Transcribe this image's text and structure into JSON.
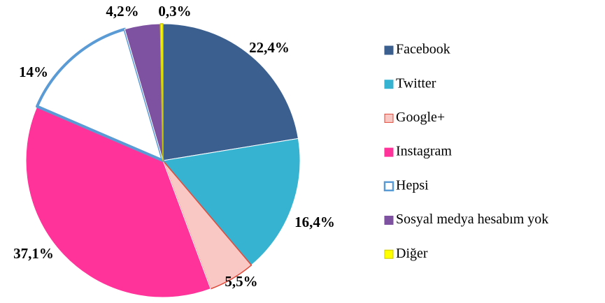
{
  "chart_data": {
    "type": "pie",
    "categories": [
      "Facebook",
      "Twitter",
      "Google+",
      "Instagram",
      "Hepsi",
      "Sosyal medya hesabım yok",
      "Diğer"
    ],
    "values": [
      22.4,
      16.4,
      5.5,
      37.1,
      14,
      4.2,
      0.3
    ],
    "value_labels": [
      "22,4%",
      "16,4%",
      "5,5%",
      "37,1%",
      "14%",
      "4,2%",
      "0,3%"
    ],
    "colors": [
      "#3b6090",
      "#36b3d1",
      "#f9c8c4",
      "#ff3399",
      "#ffffff",
      "#7e52a0",
      "#ffff00"
    ],
    "legend": "right"
  }
}
